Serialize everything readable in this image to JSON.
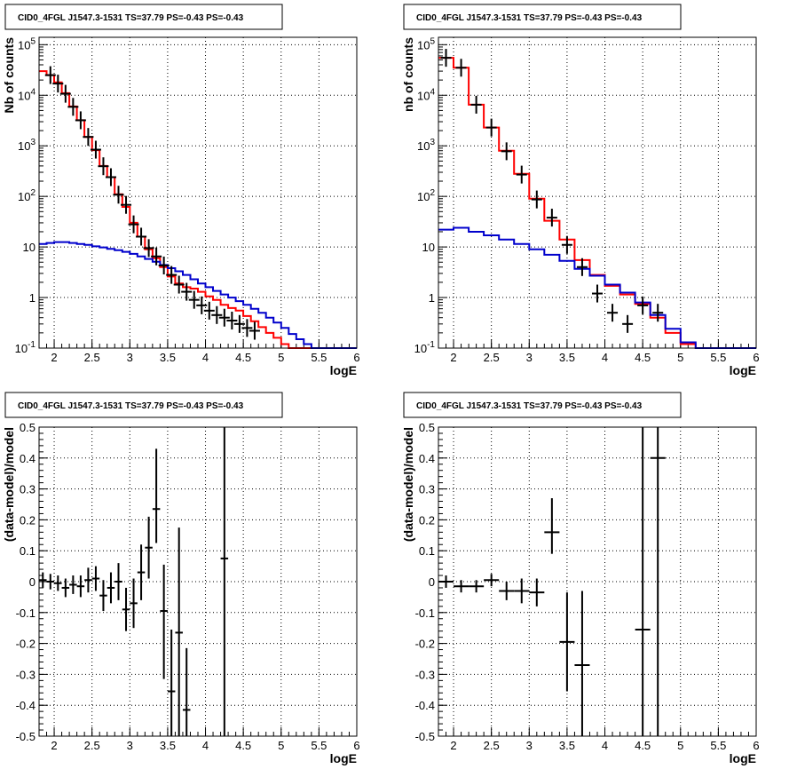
{
  "chart_data": [
    {
      "type": "line",
      "title": "CID0_4FGL J1547.3-1531 TS=37.79 PS=-0.43 PS=-0.43",
      "xlabel": "logE",
      "ylabel": "Nb of counts",
      "log_y": true,
      "xlim": [
        1.8,
        6.0
      ],
      "ylim": [
        0.1,
        140000
      ],
      "grid": true,
      "x_ticks": [
        "2",
        "2.5",
        "3",
        "3.5",
        "4",
        "4.5",
        "5",
        "5.5",
        "6"
      ],
      "y_ticks": [
        "10^{-1}",
        "1",
        "10",
        "10^{2}",
        "10^{3}",
        "10^{4}",
        "10^{5}"
      ],
      "bin_edges": [
        1.8,
        1.9,
        2.0,
        2.1,
        2.2,
        2.3,
        2.4,
        2.5,
        2.6,
        2.7,
        2.8,
        2.9,
        3.0,
        3.1,
        3.2,
        3.3,
        3.4,
        3.5,
        3.6,
        3.7,
        3.8,
        3.9,
        4.0,
        4.1,
        4.2,
        4.3,
        4.4,
        4.5,
        4.6,
        4.7,
        4.8,
        4.9,
        5.0,
        5.1,
        5.2,
        5.3,
        5.4,
        5.5,
        5.6,
        5.7,
        5.8,
        5.9,
        6.0
      ],
      "series": [
        {
          "kind": "histogram",
          "color": "#ff0000",
          "values": [
            30000,
            25000,
            18000,
            11000,
            6000,
            3200,
            1500,
            820,
            400,
            240,
            110,
            62,
            30,
            16,
            9,
            6,
            4,
            2.6,
            1.9,
            1.6,
            1.5,
            1.3,
            1.05,
            0.9,
            0.72,
            0.62,
            0.55,
            0.43,
            0.34,
            0.26,
            0.2,
            0.16,
            0.12,
            0.1,
            0.1,
            0.1,
            0.1,
            0.1,
            0.1,
            0.1,
            0.1,
            0.1
          ]
        },
        {
          "kind": "histogram",
          "color": "#0000cc",
          "values": [
            11.5,
            12,
            12.5,
            12.5,
            12,
            11.5,
            11,
            10.3,
            9.8,
            9.2,
            8.6,
            8.0,
            7.3,
            6.5,
            5.8,
            5.1,
            4.4,
            3.8,
            3.3,
            2.8,
            2.3,
            1.9,
            1.6,
            1.35,
            1.15,
            1.0,
            0.85,
            0.72,
            0.6,
            0.5,
            0.4,
            0.32,
            0.25,
            0.19,
            0.15,
            0.12,
            0.1,
            0.1,
            0.1,
            0.1,
            0.1,
            0.1
          ]
        },
        {
          "kind": "points",
          "color": "#000000",
          "x": [
            1.95,
            2.05,
            2.15,
            2.25,
            2.35,
            2.45,
            2.55,
            2.65,
            2.75,
            2.85,
            2.95,
            3.05,
            3.15,
            3.25,
            3.35,
            3.45,
            3.55,
            3.65,
            3.75,
            3.85,
            3.95,
            4.05,
            4.15,
            4.25,
            4.35,
            4.45,
            4.55,
            4.65
          ],
          "y": [
            25000,
            17000,
            10700,
            5900,
            3200,
            1500,
            840,
            395,
            240,
            108,
            68,
            28,
            16,
            9.5,
            6.5,
            4.3,
            2.8,
            1.8,
            1.3,
            0.9,
            0.7,
            0.55,
            0.45,
            0.4,
            0.35,
            0.3,
            0.25,
            0.22
          ]
        }
      ]
    },
    {
      "type": "line",
      "title": "CID0_4FGL J1547.3-1531 TS=37.79 PS=-0.43 PS=-0.43",
      "xlabel": "logE",
      "ylabel": "nb of counts",
      "log_y": true,
      "xlim": [
        1.8,
        6.0
      ],
      "ylim": [
        0.1,
        140000
      ],
      "grid": true,
      "x_ticks": [
        "2",
        "2.5",
        "3",
        "3.5",
        "4",
        "4.5",
        "5",
        "5.5",
        "6"
      ],
      "y_ticks": [
        "10^{-1}",
        "1",
        "10",
        "10^{2}",
        "10^{3}",
        "10^{4}",
        "10^{5}"
      ],
      "bin_edges": [
        1.8,
        2.0,
        2.2,
        2.4,
        2.6,
        2.8,
        3.0,
        3.2,
        3.4,
        3.6,
        3.8,
        4.0,
        4.2,
        4.4,
        4.6,
        4.8,
        5.0,
        5.2,
        5.4,
        5.6,
        5.8,
        6.0
      ],
      "series": [
        {
          "kind": "histogram",
          "color": "#ff0000",
          "values": [
            55000,
            35000,
            6500,
            2300,
            800,
            280,
            90,
            33,
            14,
            5.5,
            2.8,
            1.7,
            1.15,
            0.75,
            0.4,
            0.2,
            0.12,
            0.1,
            0.1,
            0.1,
            0.1
          ]
        },
        {
          "kind": "histogram",
          "color": "#0000cc",
          "values": [
            22,
            24,
            20,
            17,
            14,
            11.5,
            9,
            7,
            5.3,
            3.7,
            2.7,
            1.8,
            1.25,
            0.8,
            0.45,
            0.24,
            0.13,
            0.1,
            0.1,
            0.1,
            0.1
          ]
        },
        {
          "kind": "points",
          "color": "#000000",
          "x": [
            1.9,
            2.1,
            2.3,
            2.5,
            2.7,
            2.9,
            3.1,
            3.3,
            3.5,
            3.7,
            3.9,
            4.1,
            4.3,
            4.5,
            4.7
          ],
          "y": [
            55000,
            35000,
            6500,
            2300,
            780,
            270,
            87,
            38,
            11,
            4,
            1.2,
            0.5,
            0.3,
            0.7,
            0.5
          ]
        }
      ]
    },
    {
      "type": "scatter",
      "title": "CID0_4FGL J1547.3-1531 TS=37.79 PS=-0.43 PS=-0.43",
      "xlabel": "logE",
      "ylabel": "(data-model)/model",
      "xlim": [
        1.8,
        6.0
      ],
      "ylim": [
        -0.5,
        0.5
      ],
      "grid": true,
      "x_ticks": [
        "2",
        "2.5",
        "3",
        "3.5",
        "4",
        "4.5",
        "5",
        "5.5",
        "6"
      ],
      "y_ticks": [
        "-0.5",
        "-0.4",
        "-0.3",
        "-0.2",
        "-0.1",
        "0",
        "0.1",
        "0.2",
        "0.3",
        "0.4",
        "0.5"
      ],
      "series": [
        {
          "kind": "errorbars",
          "color": "#000000",
          "x": [
            1.85,
            1.95,
            2.05,
            2.15,
            2.25,
            2.35,
            2.45,
            2.55,
            2.65,
            2.75,
            2.85,
            2.95,
            3.05,
            3.15,
            3.25,
            3.35,
            3.45,
            3.55,
            3.65,
            3.75,
            4.25
          ],
          "y": [
            0.005,
            0.0,
            -0.005,
            -0.02,
            -0.01,
            -0.015,
            0.005,
            0.01,
            -0.045,
            -0.02,
            0.0,
            -0.09,
            -0.07,
            0.03,
            0.11,
            0.235,
            -0.095,
            -0.355,
            -0.165,
            -0.415,
            0.075
          ],
          "xerr": 0.05,
          "yerr_low": [
            0.025,
            0.025,
            0.025,
            0.03,
            0.03,
            0.035,
            0.04,
            0.04,
            0.05,
            0.05,
            0.06,
            0.07,
            0.08,
            0.09,
            0.1,
            0.11,
            0.22,
            0.24,
            0.34,
            0.2,
            0.6
          ],
          "yerr_high": [
            0.025,
            0.025,
            0.025,
            0.03,
            0.03,
            0.035,
            0.04,
            0.04,
            0.05,
            0.05,
            0.06,
            0.07,
            0.08,
            0.09,
            0.1,
            0.195,
            0.15,
            0.2,
            0.34,
            0.2,
            0.6
          ]
        }
      ]
    },
    {
      "type": "scatter",
      "title": "CID0_4FGL J1547.3-1531 TS=37.79 PS=-0.43 PS=-0.43",
      "xlabel": "logE",
      "ylabel": "(data-model)/model",
      "xlim": [
        1.8,
        6.0
      ],
      "ylim": [
        -0.5,
        0.5
      ],
      "grid": true,
      "x_ticks": [
        "2",
        "2.5",
        "3",
        "3.5",
        "4",
        "4.5",
        "5",
        "5.5",
        "6"
      ],
      "y_ticks": [
        "-0.5",
        "-0.4",
        "-0.3",
        "-0.2",
        "-0.1",
        "0",
        "0.1",
        "0.2",
        "0.3",
        "0.4",
        "0.5"
      ],
      "series": [
        {
          "kind": "errorbars",
          "color": "#000000",
          "x": [
            1.9,
            2.1,
            2.3,
            2.5,
            2.7,
            2.9,
            3.1,
            3.3,
            3.5,
            3.7,
            4.5,
            4.7
          ],
          "y": [
            0.0,
            -0.015,
            -0.015,
            0.005,
            -0.03,
            -0.03,
            -0.035,
            0.16,
            -0.195,
            -0.27,
            -0.155,
            0.4
          ],
          "xerr": 0.1,
          "yerr_low": [
            0.02,
            0.02,
            0.02,
            0.02,
            0.03,
            0.04,
            0.045,
            0.07,
            0.16,
            0.25,
            0.5,
            0.9
          ],
          "yerr_high": [
            0.02,
            0.02,
            0.02,
            0.02,
            0.03,
            0.04,
            0.045,
            0.11,
            0.16,
            0.24,
            0.7,
            0.9
          ]
        }
      ]
    }
  ]
}
